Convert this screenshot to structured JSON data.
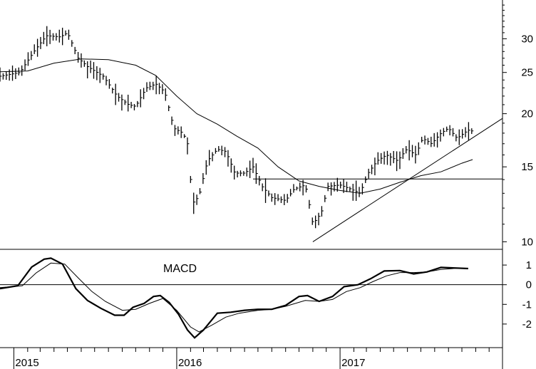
{
  "chart_data": [
    {
      "type": "bar",
      "subtype": "ohlc-weekly",
      "title": "",
      "scale": "log",
      "ylim": [
        9.6,
        37
      ],
      "y_ticks": [
        "30",
        "25",
        "20",
        "15",
        "10"
      ],
      "y_tick_values": [
        30,
        25,
        20,
        15,
        10
      ],
      "x_ticks": [
        "2015",
        "2016",
        "2017"
      ],
      "x_range": [
        "2014-12",
        "2017-12-31"
      ],
      "x_month_ticks": [
        "2015-01",
        "2015-02",
        "2015-03",
        "2015-04",
        "2015-05",
        "2015-06",
        "2015-07",
        "2015-08",
        "2015-09",
        "2015-10",
        "2015-11",
        "2015-12",
        "2016-01",
        "2016-02",
        "2016-03",
        "2016-04",
        "2016-05",
        "2016-06",
        "2016-07",
        "2016-08",
        "2016-09",
        "2016-10",
        "2016-11",
        "2016-12",
        "2017-01",
        "2017-02",
        "2017-03",
        "2017-04",
        "2017-05",
        "2017-06",
        "2017-07",
        "2017-08",
        "2017-09",
        "2017-10",
        "2017-11",
        "2017-12"
      ],
      "price_series": [
        {
          "x": "2014-12-01",
          "y": 24.5
        },
        {
          "x": "2015-01-15",
          "y": 25.0
        },
        {
          "x": "2015-02-15",
          "y": 28.0
        },
        {
          "x": "2015-03-15",
          "y": 30.5
        },
        {
          "x": "2015-04-15",
          "y": 30.3
        },
        {
          "x": "2015-05-01",
          "y": 31.0
        },
        {
          "x": "2015-05-25",
          "y": 27.0
        },
        {
          "x": "2015-06-15",
          "y": 25.8
        },
        {
          "x": "2015-07-20",
          "y": 24.5
        },
        {
          "x": "2015-08-20",
          "y": 22.0
        },
        {
          "x": "2015-09-15",
          "y": 21.0
        },
        {
          "x": "2015-10-01",
          "y": 20.8
        },
        {
          "x": "2015-10-25",
          "y": 23.0
        },
        {
          "x": "2015-11-15",
          "y": 23.5
        },
        {
          "x": "2015-12-05",
          "y": 22.5
        },
        {
          "x": "2015-12-25",
          "y": 18.5
        },
        {
          "x": "2016-01-15",
          "y": 18.0
        },
        {
          "x": "2016-01-25",
          "y": 17.0
        },
        {
          "x": "2016-02-05",
          "y": 12.3
        },
        {
          "x": "2016-02-20",
          "y": 12.8
        },
        {
          "x": "2016-03-10",
          "y": 15.5
        },
        {
          "x": "2016-04-01",
          "y": 16.5
        },
        {
          "x": "2016-04-20",
          "y": 16.3
        },
        {
          "x": "2016-05-10",
          "y": 14.5
        },
        {
          "x": "2016-06-01",
          "y": 14.5
        },
        {
          "x": "2016-06-20",
          "y": 15.0
        },
        {
          "x": "2016-07-10",
          "y": 13.5
        },
        {
          "x": "2016-08-01",
          "y": 12.7
        },
        {
          "x": "2016-09-01",
          "y": 12.5
        },
        {
          "x": "2016-09-20",
          "y": 13.3
        },
        {
          "x": "2016-10-15",
          "y": 13.6
        },
        {
          "x": "2016-11-01",
          "y": 11.0
        },
        {
          "x": "2016-11-20",
          "y": 11.7
        },
        {
          "x": "2016-12-05",
          "y": 13.5
        },
        {
          "x": "2017-01-01",
          "y": 13.6
        },
        {
          "x": "2017-01-25",
          "y": 13.3
        },
        {
          "x": "2017-02-15",
          "y": 13.0
        },
        {
          "x": "2017-03-05",
          "y": 14.5
        },
        {
          "x": "2017-03-25",
          "y": 15.5
        },
        {
          "x": "2017-04-15",
          "y": 16.0
        },
        {
          "x": "2017-05-10",
          "y": 15.5
        },
        {
          "x": "2017-05-30",
          "y": 16.5
        },
        {
          "x": "2017-06-20",
          "y": 16.0
        },
        {
          "x": "2017-07-05",
          "y": 17.5
        },
        {
          "x": "2017-07-25",
          "y": 17.0
        },
        {
          "x": "2017-08-15",
          "y": 18.0
        },
        {
          "x": "2017-09-01",
          "y": 18.5
        },
        {
          "x": "2017-09-20",
          "y": 17.5
        },
        {
          "x": "2017-10-15",
          "y": 18.3
        },
        {
          "x": "2017-10-25",
          "y": 18.2
        }
      ],
      "moving_average": [
        {
          "x": "2014-12-01",
          "y": 25.1
        },
        {
          "x": "2015-02-01",
          "y": 25.2
        },
        {
          "x": "2015-04-01",
          "y": 26.3
        },
        {
          "x": "2015-06-01",
          "y": 26.9
        },
        {
          "x": "2015-08-01",
          "y": 26.8
        },
        {
          "x": "2015-10-01",
          "y": 26.0
        },
        {
          "x": "2015-11-15",
          "y": 24.6
        },
        {
          "x": "2016-01-01",
          "y": 22.0
        },
        {
          "x": "2016-02-15",
          "y": 20.0
        },
        {
          "x": "2016-04-01",
          "y": 18.9
        },
        {
          "x": "2016-05-15",
          "y": 17.7
        },
        {
          "x": "2016-07-01",
          "y": 16.6
        },
        {
          "x": "2016-08-15",
          "y": 15.0
        },
        {
          "x": "2016-10-01",
          "y": 13.9
        },
        {
          "x": "2016-11-15",
          "y": 13.5
        },
        {
          "x": "2017-01-01",
          "y": 13.2
        },
        {
          "x": "2017-02-15",
          "y": 13.0
        },
        {
          "x": "2017-04-01",
          "y": 13.3
        },
        {
          "x": "2017-05-15",
          "y": 13.8
        },
        {
          "x": "2017-07-01",
          "y": 14.3
        },
        {
          "x": "2017-08-15",
          "y": 14.6
        },
        {
          "x": "2017-10-01",
          "y": 15.3
        },
        {
          "x": "2017-10-25",
          "y": 15.6
        }
      ],
      "trendlines": [
        {
          "kind": "horizontal",
          "x_start": "2016-06-20",
          "x_end": "2017-12-31",
          "y": 14.05
        },
        {
          "kind": "rising",
          "x_start": "2016-11-01",
          "y_start": 10.0,
          "x_end": "2017-12-31",
          "y_end": 19.5
        }
      ]
    },
    {
      "type": "line",
      "title": "MACD",
      "ylim": [
        -3.2,
        1.8
      ],
      "y_ticks": [
        "1",
        "0",
        "-1",
        "-2"
      ],
      "y_tick_values": [
        1,
        0,
        -1,
        -2
      ],
      "zero_line": true,
      "series": [
        {
          "style": "thick",
          "points": [
            {
              "x": "2014-12-01",
              "y": -0.2
            },
            {
              "x": "2015-01-10",
              "y": -0.05
            },
            {
              "x": "2015-02-10",
              "y": 0.9
            },
            {
              "x": "2015-03-10",
              "y": 1.3
            },
            {
              "x": "2015-03-25",
              "y": 1.35
            },
            {
              "x": "2015-04-20",
              "y": 1.05
            },
            {
              "x": "2015-05-20",
              "y": -0.2
            },
            {
              "x": "2015-06-15",
              "y": -0.8
            },
            {
              "x": "2015-07-15",
              "y": -1.2
            },
            {
              "x": "2015-08-15",
              "y": -1.55
            },
            {
              "x": "2015-09-05",
              "y": -1.55
            },
            {
              "x": "2015-09-25",
              "y": -1.15
            },
            {
              "x": "2015-10-20",
              "y": -0.95
            },
            {
              "x": "2015-11-10",
              "y": -0.6
            },
            {
              "x": "2015-11-25",
              "y": -0.55
            },
            {
              "x": "2015-12-15",
              "y": -0.9
            },
            {
              "x": "2016-01-05",
              "y": -1.5
            },
            {
              "x": "2016-01-25",
              "y": -2.3
            },
            {
              "x": "2016-02-10",
              "y": -2.7
            },
            {
              "x": "2016-03-01",
              "y": -2.3
            },
            {
              "x": "2016-04-01",
              "y": -1.45
            },
            {
              "x": "2016-05-01",
              "y": -1.4
            },
            {
              "x": "2016-06-01",
              "y": -1.3
            },
            {
              "x": "2016-07-01",
              "y": -1.25
            },
            {
              "x": "2016-08-01",
              "y": -1.25
            },
            {
              "x": "2016-09-01",
              "y": -1.05
            },
            {
              "x": "2016-10-01",
              "y": -0.6
            },
            {
              "x": "2016-10-20",
              "y": -0.55
            },
            {
              "x": "2016-11-15",
              "y": -0.85
            },
            {
              "x": "2016-12-15",
              "y": -0.6
            },
            {
              "x": "2017-01-10",
              "y": -0.1
            },
            {
              "x": "2017-02-10",
              "y": 0.0
            },
            {
              "x": "2017-03-10",
              "y": 0.3
            },
            {
              "x": "2017-04-10",
              "y": 0.7
            },
            {
              "x": "2017-05-15",
              "y": 0.72
            },
            {
              "x": "2017-06-15",
              "y": 0.55
            },
            {
              "x": "2017-07-15",
              "y": 0.65
            },
            {
              "x": "2017-08-15",
              "y": 0.88
            },
            {
              "x": "2017-09-15",
              "y": 0.85
            },
            {
              "x": "2017-10-15",
              "y": 0.82
            }
          ]
        },
        {
          "style": "thin",
          "points": [
            {
              "x": "2014-12-01",
              "y": -0.15
            },
            {
              "x": "2015-01-20",
              "y": -0.05
            },
            {
              "x": "2015-02-20",
              "y": 0.6
            },
            {
              "x": "2015-03-25",
              "y": 1.1
            },
            {
              "x": "2015-04-25",
              "y": 1.05
            },
            {
              "x": "2015-05-25",
              "y": 0.35
            },
            {
              "x": "2015-06-25",
              "y": -0.35
            },
            {
              "x": "2015-07-25",
              "y": -0.85
            },
            {
              "x": "2015-09-01",
              "y": -1.3
            },
            {
              "x": "2015-10-01",
              "y": -1.25
            },
            {
              "x": "2015-11-01",
              "y": -0.95
            },
            {
              "x": "2015-12-01",
              "y": -0.7
            },
            {
              "x": "2016-01-01",
              "y": -1.3
            },
            {
              "x": "2016-02-01",
              "y": -2.15
            },
            {
              "x": "2016-02-20",
              "y": -2.4
            },
            {
              "x": "2016-03-20",
              "y": -2.05
            },
            {
              "x": "2016-04-20",
              "y": -1.65
            },
            {
              "x": "2016-05-20",
              "y": -1.45
            },
            {
              "x": "2016-07-01",
              "y": -1.3
            },
            {
              "x": "2016-08-01",
              "y": -1.25
            },
            {
              "x": "2016-09-01",
              "y": -1.1
            },
            {
              "x": "2016-10-15",
              "y": -0.8
            },
            {
              "x": "2016-11-15",
              "y": -0.85
            },
            {
              "x": "2016-12-15",
              "y": -0.75
            },
            {
              "x": "2017-01-15",
              "y": -0.35
            },
            {
              "x": "2017-02-15",
              "y": -0.15
            },
            {
              "x": "2017-03-15",
              "y": 0.15
            },
            {
              "x": "2017-04-15",
              "y": 0.45
            },
            {
              "x": "2017-05-15",
              "y": 0.62
            },
            {
              "x": "2017-06-15",
              "y": 0.62
            },
            {
              "x": "2017-07-15",
              "y": 0.65
            },
            {
              "x": "2017-08-15",
              "y": 0.78
            },
            {
              "x": "2017-09-15",
              "y": 0.83
            },
            {
              "x": "2017-10-15",
              "y": 0.84
            }
          ]
        }
      ]
    }
  ],
  "colors": {
    "background": "#ffffff",
    "ink": "#000000"
  }
}
